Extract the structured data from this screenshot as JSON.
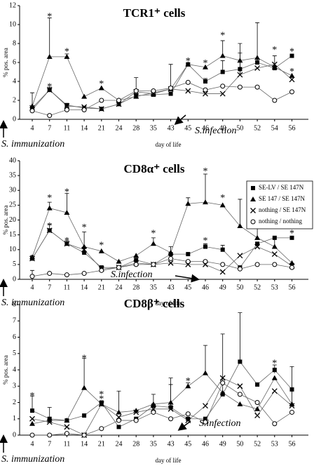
{
  "chart_data": [
    {
      "type": "line",
      "title": "TCR1⁺ cells",
      "y_label": "% pos. area",
      "x_label": "day of life",
      "categories": [
        "4",
        "7",
        "11",
        "14",
        "21",
        "24",
        "28",
        "35",
        "43",
        "45",
        "46",
        "49",
        "50",
        "52",
        "54",
        "56"
      ],
      "ylim": [
        0,
        12
      ],
      "yticks": [
        0,
        2,
        4,
        6,
        8,
        10,
        12
      ],
      "infection_label": "S.infection",
      "immunization_label": "S. immunization",
      "series": [
        {
          "name": "SE-LV / SE 147N",
          "color": "#000000",
          "marker": "square",
          "values": [
            1.0,
            3.1,
            1.5,
            1.2,
            1.1,
            1.6,
            2.5,
            2.6,
            2.7,
            5.8,
            4.0,
            5.0,
            5.3,
            6.0,
            5.4,
            6.7
          ],
          "errors": [
            null,
            0.3,
            null,
            null,
            null,
            null,
            null,
            null,
            null,
            null,
            0.3,
            1.2,
            1.7,
            4.2,
            null,
            null
          ]
        },
        {
          "name": "SE 147 / SE 147N",
          "color": "#000000",
          "marker": "triangle",
          "values": [
            1.4,
            6.6,
            6.6,
            2.4,
            3.3,
            2.0,
            2.4,
            2.8,
            3.2,
            5.8,
            5.5,
            6.7,
            6.2,
            6.5,
            5.5,
            4.6
          ],
          "errors": [
            1.4,
            4.1,
            0.3,
            null,
            null,
            null,
            null,
            null,
            2.6,
            null,
            null,
            1.6,
            null,
            null,
            1.2,
            null
          ]
        },
        {
          "name": "nothing / SE 147N",
          "color": "#000000",
          "marker": "x",
          "values": [
            1.2,
            3.1,
            1.4,
            1.3,
            1.1,
            1.6,
            2.9,
            2.7,
            3.2,
            3.0,
            2.7,
            2.7,
            4.7,
            5.4,
            5.8,
            4.2
          ],
          "errors": [
            null,
            null,
            null,
            null,
            null,
            null,
            1.5,
            null,
            null,
            null,
            null,
            null,
            3.3,
            null,
            null,
            null
          ]
        },
        {
          "name": "nothing / nothing",
          "color": "#000000",
          "marker": "circle",
          "values": [
            0.9,
            0.4,
            1.0,
            1.0,
            2.0,
            2.0,
            3.0,
            3.0,
            3.3,
            3.9,
            3.1,
            3.5,
            3.4,
            3.4,
            2.0,
            2.9
          ],
          "errors": [
            null,
            null,
            null,
            null,
            null,
            null,
            null,
            null,
            null,
            null,
            null,
            null,
            null,
            null,
            null,
            null
          ]
        }
      ],
      "annotations": [
        {
          "text": "*",
          "x": "7",
          "y": 11.0
        },
        {
          "text": "*",
          "x": "7",
          "y": 3.6
        },
        {
          "text": "*",
          "x": "11",
          "y": 7.3
        },
        {
          "text": "*",
          "x": "21",
          "y": 3.9
        },
        {
          "text": "*",
          "x": "45",
          "y": 6.3
        },
        {
          "text": "*",
          "x": "46",
          "y": 6.1
        },
        {
          "text": "*",
          "x": "49",
          "y": 9.0
        },
        {
          "text": "*",
          "x": "54",
          "y": 7.5
        },
        {
          "text": "*",
          "x": "56",
          "y": 7.3
        },
        {
          "text": "*",
          "x": "56",
          "y": 5.2
        }
      ]
    },
    {
      "type": "line",
      "title": "CD8α⁺ cells",
      "y_label": "% pos. area",
      "x_label": "day of life",
      "categories": [
        "4",
        "7",
        "11",
        "14",
        "21",
        "24",
        "28",
        "35",
        "43",
        "45",
        "46",
        "49",
        "50",
        "52",
        "53",
        "56"
      ],
      "ylim": [
        0,
        40
      ],
      "yticks": [
        0,
        5,
        10,
        15,
        20,
        25,
        30,
        35,
        40
      ],
      "legend": "upper right",
      "infection_label": "S.infection",
      "immunization_label": "S. immunization",
      "series": [
        {
          "name": "SE-LV / SE 147N",
          "color": "#000000",
          "marker": "square",
          "values": [
            7,
            16.5,
            12,
            9,
            4,
            4,
            6.5,
            5,
            8.5,
            8.5,
            11,
            10,
            4,
            12,
            14,
            14
          ],
          "errors": [
            1,
            2,
            1,
            null,
            null,
            null,
            null,
            null,
            null,
            null,
            1,
            1.5,
            null,
            null,
            null,
            null
          ]
        },
        {
          "name": "SE 147 / SE 147N",
          "color": "#000000",
          "marker": "triangle",
          "values": [
            7.5,
            24,
            22.5,
            11,
            9.5,
            6,
            8,
            12,
            9,
            25.5,
            26,
            25,
            18,
            14,
            11,
            5.5
          ],
          "errors": [
            null,
            2,
            6.5,
            5,
            null,
            null,
            null,
            2,
            2,
            2,
            9.5,
            null,
            9,
            9,
            3,
            null
          ]
        },
        {
          "name": "nothing / SE 147N",
          "color": "#000000",
          "marker": "x",
          "values": [
            7,
            16.5,
            12,
            10,
            3.5,
            4,
            5.5,
            5,
            5.5,
            5,
            5,
            2.5,
            8,
            11,
            8.5,
            4.5
          ],
          "errors": [
            null,
            null,
            null,
            null,
            null,
            null,
            null,
            null,
            null,
            null,
            null,
            null,
            null,
            null,
            null,
            null
          ]
        },
        {
          "name": "nothing / nothing",
          "color": "#000000",
          "marker": "circle",
          "values": [
            1,
            2,
            1.5,
            2,
            3,
            4,
            5,
            5,
            7,
            6,
            6,
            5,
            3.5,
            5,
            5,
            4
          ],
          "errors": [
            2,
            null,
            null,
            null,
            null,
            null,
            null,
            null,
            null,
            null,
            null,
            null,
            null,
            null,
            null,
            null
          ]
        }
      ],
      "annotations": [
        {
          "text": "*",
          "x": "7",
          "y": 28
        },
        {
          "text": "*",
          "x": "7",
          "y": 18.5
        },
        {
          "text": "*",
          "x": "11",
          "y": 30
        },
        {
          "text": "*",
          "x": "11",
          "y": 13.5
        },
        {
          "text": "*",
          "x": "14",
          "y": 18
        },
        {
          "text": "*",
          "x": "21",
          "y": 12
        },
        {
          "text": "*",
          "x": "35",
          "y": 16
        },
        {
          "text": "*",
          "x": "46",
          "y": 37
        },
        {
          "text": "*",
          "x": "46",
          "y": 13.5
        },
        {
          "text": "*",
          "x": "49",
          "y": 28
        },
        {
          "text": "*",
          "x": "56",
          "y": 16
        }
      ]
    },
    {
      "type": "line",
      "title": "CD8β⁺ cells",
      "y_label": "% pos. area",
      "x_label": "day of life",
      "categories": [
        "4",
        "7",
        "11",
        "14",
        "21",
        "24",
        "28",
        "35",
        "43",
        "45",
        "46",
        "49",
        "50",
        "52",
        "53",
        "56"
      ],
      "ylim": [
        0,
        8
      ],
      "yticks": [
        0,
        1,
        2,
        3,
        4,
        5,
        6,
        7,
        8
      ],
      "infection_label": "S.infection",
      "immunization_label": "S. immunization",
      "series": [
        {
          "name": "SE-LV / SE 147N",
          "color": "#000000",
          "marker": "square",
          "values": [
            1.5,
            1.0,
            0.9,
            1.2,
            2.0,
            0.5,
            1.0,
            1.8,
            1.7,
            1.0,
            1.0,
            2.5,
            4.5,
            3.1,
            4.0,
            2.8
          ],
          "errors": [
            0.9,
            null,
            null,
            null,
            null,
            null,
            null,
            null,
            1.4,
            null,
            null,
            null,
            3,
            null,
            0.3,
            null
          ]
        },
        {
          "name": "SE 147 / SE 147N",
          "color": "#000000",
          "marker": "triangle",
          "values": [
            0.7,
            0.9,
            0.9,
            2.9,
            1.9,
            1.4,
            1.5,
            1.9,
            2.0,
            3.0,
            3.8,
            2.6,
            1.9,
            1.6,
            3.5,
            1.9
          ],
          "errors": [
            null,
            0.8,
            null,
            1.8,
            null,
            1.3,
            null,
            0.6,
            1.5,
            0.2,
            1.7,
            3.6,
            null,
            null,
            null,
            2.3
          ]
        },
        {
          "name": "nothing / SE 147N",
          "color": "#000000",
          "marker": "x",
          "values": [
            1.0,
            0.8,
            0.5,
            0.0,
            1.9,
            1.1,
            1.4,
            1.6,
            1.6,
            0.9,
            1.8,
            3.5,
            3.0,
            1.2,
            2.7,
            1.8
          ],
          "errors": [
            null,
            null,
            null,
            null,
            null,
            null,
            null,
            null,
            null,
            null,
            null,
            null,
            null,
            null,
            null,
            null
          ]
        },
        {
          "name": "nothing / nothing",
          "color": "#000000",
          "marker": "circle",
          "values": [
            0.0,
            0.0,
            0.1,
            0.0,
            0.4,
            0.9,
            0.9,
            1.4,
            1.0,
            1.3,
            0.8,
            3.2,
            2.5,
            2.0,
            0.7,
            1.4
          ],
          "errors": [
            null,
            null,
            null,
            null,
            null,
            null,
            null,
            null,
            null,
            null,
            null,
            null,
            null,
            null,
            null,
            null
          ]
        }
      ],
      "annotations": [
        {
          "text": "*",
          "x": "4",
          "y": 2.5
        },
        {
          "text": "*",
          "x": "14",
          "y": 4.8
        },
        {
          "text": "*",
          "x": "21",
          "y": 2.6
        },
        {
          "text": "*",
          "x": "21",
          "y": 2.3
        },
        {
          "text": "*",
          "x": "45",
          "y": 3.4
        },
        {
          "text": "*",
          "x": "53",
          "y": 4.5
        },
        {
          "text": "*",
          "x": "53",
          "y": 3.9
        }
      ]
    }
  ]
}
